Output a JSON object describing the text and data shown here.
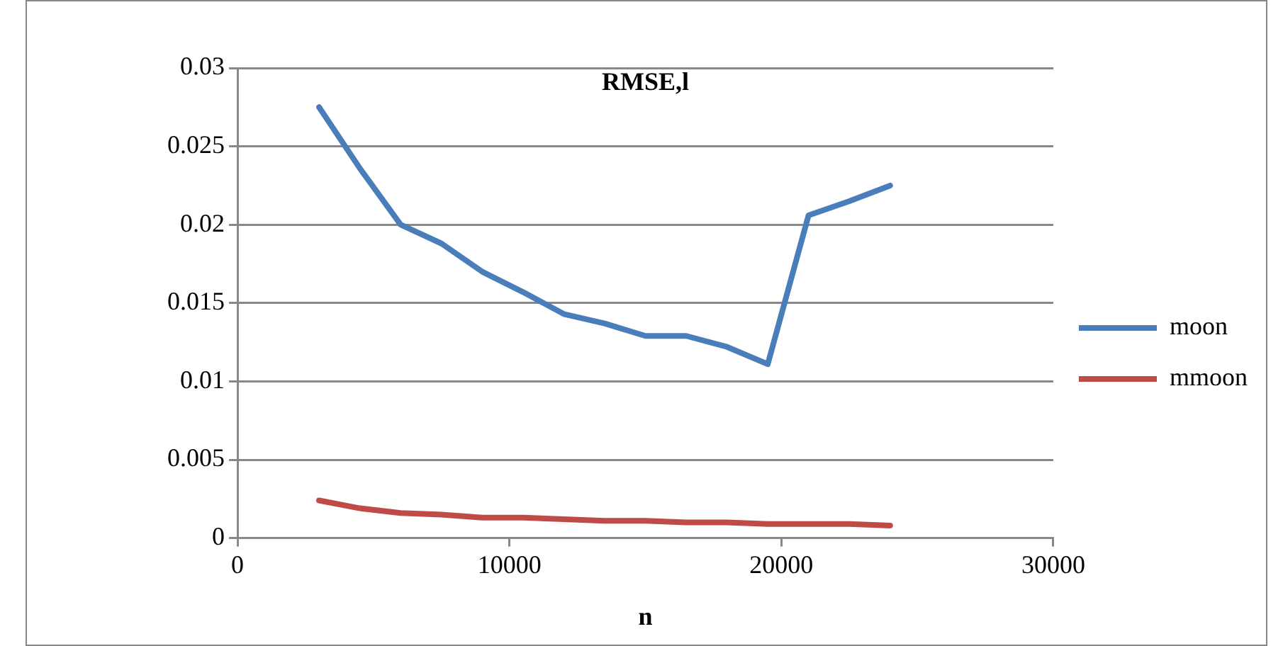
{
  "chart_data": {
    "type": "line",
    "title": "RMSE,l",
    "xlabel": "n",
    "x": [
      3000,
      4500,
      6000,
      7500,
      9000,
      10500,
      12000,
      13500,
      15000,
      16500,
      18000,
      19500,
      21000,
      22500,
      24000
    ],
    "series": [
      {
        "name": "moon",
        "color": "#4a7ebb",
        "values": [
          0.0275,
          0.0236,
          0.02,
          0.0188,
          0.017,
          0.0157,
          0.0143,
          0.0137,
          0.0129,
          0.0129,
          0.0122,
          0.0111,
          0.0206,
          0.0215,
          0.0225
        ]
      },
      {
        "name": "mmoon",
        "color": "#be4b48",
        "values": [
          0.0024,
          0.0019,
          0.0016,
          0.0015,
          0.0013,
          0.0013,
          0.0012,
          0.0011,
          0.0011,
          0.001,
          0.001,
          0.0009,
          0.0009,
          0.0009,
          0.0008
        ]
      }
    ],
    "xlim": [
      0,
      30000
    ],
    "xticks": [
      0,
      10000,
      20000,
      30000
    ],
    "ylim": [
      0,
      0.03
    ],
    "yticks": [
      0,
      0.005,
      0.01,
      0.015,
      0.02,
      0.025,
      0.03
    ],
    "grid": "y",
    "legend": "right",
    "marker": "none",
    "line_style": "solid"
  }
}
